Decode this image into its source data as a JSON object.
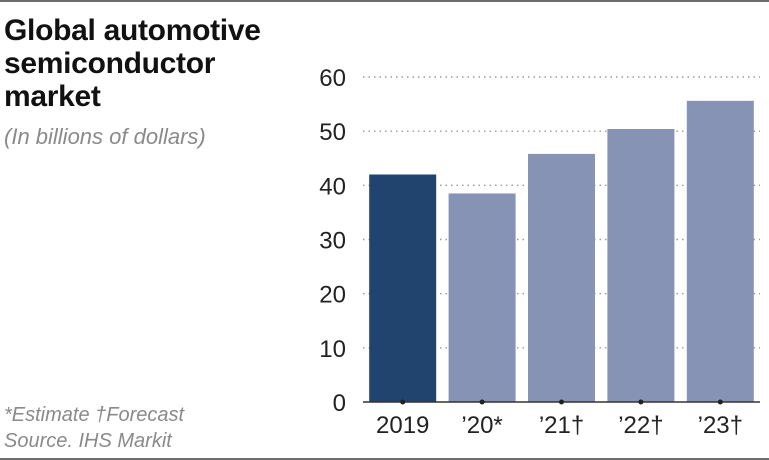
{
  "chart_data": {
    "type": "bar",
    "title": "Global automotive semiconductor market",
    "subtitle": "(In billions of dollars)",
    "categories": [
      "2019",
      "’20*",
      "’21†",
      "’22†",
      "’23†"
    ],
    "values": [
      42,
      38.5,
      45.8,
      50.4,
      55.6
    ],
    "bar_colors": [
      "#21446f",
      "#8693b4",
      "#8693b4",
      "#8693b4",
      "#8693b4"
    ],
    "ylim": [
      0,
      60
    ],
    "yticks": [
      0,
      10,
      20,
      30,
      40,
      50,
      60
    ],
    "grid": true,
    "xlabel": "",
    "ylabel": ""
  },
  "notes": {
    "line1": "*Estimate  †Forecast",
    "line2": "Source. IHS Markit"
  }
}
